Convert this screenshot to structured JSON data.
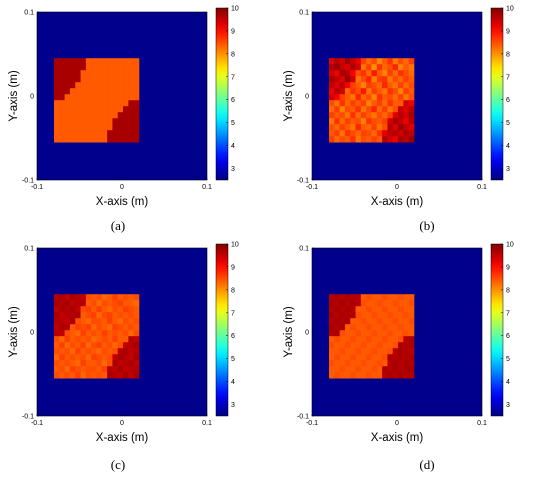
{
  "chart_data": [
    {
      "type": "heatmap",
      "panel_label": "(a)",
      "xlabel": "X-axis (m)",
      "ylabel": "Y-axis (m)",
      "xlim": [
        -0.1,
        0.1
      ],
      "ylim": [
        -0.1,
        0.1
      ],
      "x_ticks": [
        "-0.1",
        "0",
        "0.1"
      ],
      "y_ticks": [
        "0.1",
        "0",
        "-0.1"
      ],
      "colorbar_range": [
        2.5,
        10
      ],
      "colorbar_ticks": [
        "10",
        "9",
        "8",
        "7",
        "6",
        "5",
        "4",
        "3"
      ],
      "background_value": 2.6,
      "grid": [
        [
          9.7,
          9.7,
          9.7,
          9.7,
          9.7,
          9.7,
          8.4,
          8.4,
          8.4,
          8.4,
          8.4,
          8.4,
          8.4,
          8.4,
          8.4,
          8.4
        ],
        [
          9.7,
          9.7,
          9.7,
          9.7,
          9.7,
          9.7,
          8.4,
          8.4,
          8.4,
          8.4,
          8.4,
          8.4,
          8.4,
          8.4,
          8.4,
          8.4
        ],
        [
          9.7,
          9.7,
          9.7,
          9.7,
          9.7,
          8.4,
          8.4,
          8.4,
          8.4,
          8.4,
          8.4,
          8.4,
          8.4,
          8.4,
          8.4,
          8.4
        ],
        [
          9.7,
          9.7,
          9.7,
          9.7,
          9.7,
          8.4,
          8.4,
          8.4,
          8.4,
          8.4,
          8.4,
          8.4,
          8.4,
          8.4,
          8.4,
          8.4
        ],
        [
          9.7,
          9.7,
          9.7,
          9.7,
          8.4,
          8.4,
          8.4,
          8.4,
          8.4,
          8.4,
          8.4,
          8.4,
          8.4,
          8.4,
          8.4,
          8.4
        ],
        [
          9.7,
          9.7,
          9.7,
          8.4,
          8.4,
          8.4,
          8.4,
          8.4,
          8.4,
          8.4,
          8.4,
          8.4,
          8.4,
          8.4,
          8.4,
          8.4
        ],
        [
          9.7,
          9.7,
          8.4,
          8.4,
          8.4,
          8.4,
          8.4,
          8.4,
          8.4,
          8.4,
          8.4,
          8.4,
          8.4,
          8.4,
          8.4,
          8.4
        ],
        [
          8.4,
          8.4,
          8.4,
          8.4,
          8.4,
          8.4,
          8.4,
          8.4,
          8.4,
          8.4,
          8.4,
          8.4,
          8.4,
          8.4,
          9.7,
          9.7
        ],
        [
          8.4,
          8.4,
          8.4,
          8.4,
          8.4,
          8.4,
          8.4,
          8.4,
          8.4,
          8.4,
          8.4,
          8.4,
          8.4,
          9.7,
          9.7,
          9.7
        ],
        [
          8.4,
          8.4,
          8.4,
          8.4,
          8.4,
          8.4,
          8.4,
          8.4,
          8.4,
          8.4,
          8.4,
          8.4,
          9.7,
          9.7,
          9.7,
          9.7
        ],
        [
          8.4,
          8.4,
          8.4,
          8.4,
          8.4,
          8.4,
          8.4,
          8.4,
          8.4,
          8.4,
          8.4,
          9.7,
          9.7,
          9.7,
          9.7,
          9.7
        ],
        [
          8.4,
          8.4,
          8.4,
          8.4,
          8.4,
          8.4,
          8.4,
          8.4,
          8.4,
          8.4,
          8.4,
          9.7,
          9.7,
          9.7,
          9.7,
          9.7
        ],
        [
          8.4,
          8.4,
          8.4,
          8.4,
          8.4,
          8.4,
          8.4,
          8.4,
          8.4,
          8.4,
          9.7,
          9.7,
          9.7,
          9.7,
          9.7,
          9.7
        ],
        [
          8.4,
          8.4,
          8.4,
          8.4,
          8.4,
          8.4,
          8.4,
          8.4,
          8.4,
          8.4,
          9.7,
          9.7,
          9.7,
          9.7,
          9.7,
          9.7
        ]
      ]
    },
    {
      "type": "heatmap",
      "panel_label": "(b)",
      "xlabel": "X-axis (m)",
      "ylabel": "Y-axis (m)",
      "xlim": [
        -0.1,
        0.1
      ],
      "ylim": [
        -0.1,
        0.1
      ],
      "x_ticks": [
        "-0.1",
        "0",
        "0.1"
      ],
      "y_ticks": [
        "0.1",
        "0",
        "-0.1"
      ],
      "colorbar_range": [
        2.5,
        10
      ],
      "colorbar_ticks": [
        "10",
        "9",
        "8",
        "7",
        "6",
        "5",
        "4",
        "3"
      ],
      "background_value": 2.6,
      "grid": [
        [
          9.3,
          9.6,
          9.4,
          9.8,
          9.5,
          9.2,
          8.6,
          8.3,
          8.5,
          8.1,
          8.4,
          8.7,
          8.2,
          8.5,
          8.3,
          8.6
        ],
        [
          9.6,
          9.8,
          9.5,
          9.3,
          9.7,
          9.4,
          8.2,
          8.6,
          8.0,
          8.7,
          8.3,
          8.5,
          8.8,
          8.1,
          8.4,
          8.2
        ],
        [
          9.4,
          9.2,
          9.7,
          9.6,
          9.1,
          8.5,
          8.7,
          8.3,
          8.9,
          8.4,
          8.1,
          8.6,
          8.3,
          8.7,
          8.5,
          8.3
        ],
        [
          9.7,
          9.5,
          9.3,
          9.8,
          9.4,
          8.2,
          8.5,
          8.8,
          8.1,
          8.6,
          8.7,
          8.2,
          8.5,
          8.3,
          8.6,
          8.4
        ],
        [
          9.5,
          9.3,
          9.6,
          9.1,
          8.6,
          8.4,
          8.1,
          8.6,
          8.5,
          8.3,
          8.8,
          8.4,
          8.2,
          8.6,
          8.3,
          8.5
        ],
        [
          9.2,
          9.6,
          9.4,
          8.3,
          8.7,
          8.5,
          8.9,
          8.2,
          8.6,
          8.4,
          8.2,
          8.7,
          8.5,
          8.1,
          8.6,
          8.4
        ],
        [
          9.4,
          9.1,
          8.6,
          8.4,
          8.2,
          8.8,
          8.3,
          8.5,
          8.1,
          8.7,
          8.4,
          8.5,
          8.3,
          8.6,
          8.2,
          8.5
        ],
        [
          8.5,
          8.2,
          8.7,
          8.3,
          8.6,
          8.4,
          8.6,
          8.1,
          8.4,
          8.6,
          8.3,
          8.7,
          8.4,
          8.4,
          9.4,
          9.2
        ],
        [
          8.3,
          8.6,
          8.1,
          8.5,
          8.4,
          8.7,
          8.2,
          8.5,
          8.8,
          8.3,
          8.6,
          8.2,
          8.5,
          9.5,
          9.3,
          9.6
        ],
        [
          8.6,
          8.4,
          8.5,
          8.2,
          8.7,
          8.3,
          8.6,
          8.4,
          8.2,
          8.5,
          8.3,
          8.6,
          9.3,
          9.6,
          9.4,
          9.7
        ],
        [
          8.2,
          8.7,
          8.3,
          8.6,
          8.4,
          8.5,
          8.1,
          8.7,
          8.5,
          8.4,
          8.6,
          9.4,
          9.7,
          9.5,
          9.2,
          9.6
        ],
        [
          8.5,
          8.3,
          8.6,
          8.4,
          8.2,
          8.8,
          8.4,
          8.3,
          8.6,
          8.2,
          8.5,
          9.6,
          9.3,
          9.8,
          9.5,
          9.3
        ],
        [
          8.4,
          8.6,
          8.2,
          8.7,
          8.5,
          8.3,
          8.6,
          8.5,
          8.3,
          8.7,
          9.3,
          9.5,
          9.6,
          9.4,
          9.7,
          9.5
        ],
        [
          8.6,
          8.3,
          8.5,
          8.4,
          8.7,
          8.2,
          8.5,
          8.4,
          8.6,
          8.4,
          9.6,
          9.4,
          9.2,
          9.7,
          9.5,
          9.8
        ]
      ]
    },
    {
      "type": "heatmap",
      "panel_label": "(c)",
      "xlabel": "X-axis (m)",
      "ylabel": "Y-axis (m)",
      "xlim": [
        -0.1,
        0.1
      ],
      "ylim": [
        -0.1,
        0.1
      ],
      "x_ticks": [
        "-0.1",
        "0",
        "0.1"
      ],
      "y_ticks": [
        "0.1",
        "0",
        "-0.1"
      ],
      "colorbar_range": [
        2.5,
        10
      ],
      "colorbar_ticks": [
        "10",
        "9",
        "8",
        "7",
        "6",
        "5",
        "4",
        "3"
      ],
      "background_value": 2.6,
      "grid": [
        [
          9.6,
          9.7,
          9.5,
          9.7,
          9.6,
          9.5,
          8.5,
          8.4,
          8.5,
          8.3,
          8.4,
          8.6,
          8.4,
          8.5,
          8.4,
          8.5
        ],
        [
          9.7,
          9.6,
          9.7,
          9.5,
          9.6,
          9.6,
          8.4,
          8.5,
          8.3,
          8.5,
          8.4,
          8.5,
          8.6,
          8.4,
          8.4,
          8.3
        ],
        [
          9.5,
          9.7,
          9.6,
          9.7,
          9.5,
          8.5,
          8.6,
          8.4,
          8.6,
          8.4,
          8.3,
          8.5,
          8.4,
          8.6,
          8.5,
          8.4
        ],
        [
          9.7,
          9.5,
          9.6,
          9.6,
          9.7,
          8.4,
          8.5,
          8.6,
          8.3,
          8.5,
          8.6,
          8.4,
          8.5,
          8.4,
          8.5,
          8.4
        ],
        [
          9.6,
          9.6,
          9.5,
          9.7,
          8.5,
          8.4,
          8.3,
          8.5,
          8.5,
          8.4,
          8.6,
          8.4,
          8.3,
          8.5,
          8.4,
          8.5
        ],
        [
          9.5,
          9.7,
          9.6,
          8.4,
          8.6,
          8.5,
          8.6,
          8.3,
          8.5,
          8.4,
          8.3,
          8.6,
          8.5,
          8.4,
          8.5,
          8.4
        ],
        [
          9.6,
          9.5,
          8.5,
          8.4,
          8.3,
          8.6,
          8.4,
          8.5,
          8.4,
          8.6,
          8.4,
          8.5,
          8.4,
          8.5,
          8.3,
          8.5
        ],
        [
          8.5,
          8.3,
          8.6,
          8.4,
          8.5,
          8.4,
          8.5,
          8.3,
          8.4,
          8.5,
          8.4,
          8.6,
          8.4,
          8.4,
          9.6,
          9.5
        ],
        [
          8.4,
          8.6,
          8.3,
          8.5,
          8.4,
          8.6,
          8.3,
          8.5,
          8.6,
          8.4,
          8.5,
          8.3,
          8.5,
          9.5,
          9.6,
          9.7
        ],
        [
          8.5,
          8.4,
          8.5,
          8.3,
          8.6,
          8.4,
          8.5,
          8.4,
          8.3,
          8.5,
          8.4,
          8.5,
          9.6,
          9.7,
          9.5,
          9.6
        ],
        [
          8.3,
          8.6,
          8.4,
          8.5,
          8.4,
          8.5,
          8.3,
          8.6,
          8.5,
          8.4,
          8.5,
          9.5,
          9.7,
          9.6,
          9.5,
          9.7
        ],
        [
          8.5,
          8.4,
          8.5,
          8.4,
          8.3,
          8.6,
          8.4,
          8.4,
          8.5,
          8.3,
          8.5,
          9.7,
          9.5,
          9.6,
          9.7,
          9.5
        ],
        [
          8.4,
          8.5,
          8.3,
          8.6,
          8.5,
          8.4,
          8.5,
          8.5,
          8.4,
          8.6,
          9.6,
          9.5,
          9.7,
          9.5,
          9.6,
          9.6
        ],
        [
          8.5,
          8.4,
          8.5,
          8.4,
          8.6,
          8.3,
          8.5,
          8.4,
          8.5,
          8.4,
          9.7,
          9.6,
          9.5,
          9.7,
          9.5,
          9.7
        ]
      ]
    },
    {
      "type": "heatmap",
      "panel_label": "(d)",
      "xlabel": "X-axis (m)",
      "ylabel": "Y-axis (m)",
      "xlim": [
        -0.1,
        0.1
      ],
      "ylim": [
        -0.1,
        0.1
      ],
      "x_ticks": [
        "-0.1",
        "0",
        "0.1"
      ],
      "y_ticks": [
        "0.1",
        "0",
        "-0.1"
      ],
      "colorbar_range": [
        2.5,
        10
      ],
      "colorbar_ticks": [
        "10",
        "9",
        "8",
        "7",
        "6",
        "5",
        "4",
        "3"
      ],
      "background_value": 2.6,
      "grid": [
        [
          9.6,
          9.7,
          9.6,
          9.7,
          9.6,
          9.6,
          8.4,
          8.5,
          8.4,
          8.4,
          8.5,
          8.4,
          8.4,
          8.5,
          8.4,
          8.4
        ],
        [
          9.7,
          9.6,
          9.7,
          9.6,
          9.7,
          9.6,
          8.5,
          8.4,
          8.4,
          8.5,
          8.4,
          8.4,
          8.5,
          8.4,
          8.4,
          8.5
        ],
        [
          9.6,
          9.7,
          9.6,
          9.7,
          9.6,
          8.4,
          8.4,
          8.5,
          8.4,
          8.4,
          8.5,
          8.4,
          8.4,
          8.5,
          8.4,
          8.4
        ],
        [
          9.7,
          9.6,
          9.7,
          9.6,
          9.7,
          8.5,
          8.4,
          8.4,
          8.5,
          8.4,
          8.4,
          8.5,
          8.4,
          8.4,
          8.5,
          8.4
        ],
        [
          9.6,
          9.7,
          9.6,
          9.7,
          8.4,
          8.4,
          8.5,
          8.4,
          8.4,
          8.5,
          8.4,
          8.4,
          8.5,
          8.4,
          8.4,
          8.5
        ],
        [
          9.7,
          9.6,
          9.7,
          8.4,
          8.5,
          8.4,
          8.4,
          8.5,
          8.4,
          8.4,
          8.5,
          8.4,
          8.4,
          8.5,
          8.4,
          8.4
        ],
        [
          9.6,
          9.7,
          8.5,
          8.4,
          8.4,
          8.5,
          8.4,
          8.4,
          8.5,
          8.4,
          8.4,
          8.5,
          8.4,
          8.4,
          8.5,
          8.4
        ],
        [
          8.4,
          8.5,
          8.4,
          8.4,
          8.5,
          8.4,
          8.4,
          8.5,
          8.4,
          8.4,
          8.5,
          8.4,
          8.4,
          8.5,
          9.6,
          9.7
        ],
        [
          8.5,
          8.4,
          8.4,
          8.5,
          8.4,
          8.4,
          8.5,
          8.4,
          8.4,
          8.5,
          8.4,
          8.4,
          8.5,
          9.7,
          9.6,
          9.7
        ],
        [
          8.4,
          8.4,
          8.5,
          8.4,
          8.4,
          8.5,
          8.4,
          8.4,
          8.5,
          8.4,
          8.4,
          8.5,
          9.6,
          9.7,
          9.6,
          9.6
        ],
        [
          8.4,
          8.5,
          8.4,
          8.4,
          8.5,
          8.4,
          8.4,
          8.5,
          8.4,
          8.4,
          8.5,
          9.7,
          9.6,
          9.7,
          9.6,
          9.7
        ],
        [
          8.5,
          8.4,
          8.4,
          8.5,
          8.4,
          8.4,
          8.5,
          8.4,
          8.4,
          8.5,
          8.4,
          9.6,
          9.7,
          9.6,
          9.7,
          9.6
        ],
        [
          8.4,
          8.4,
          8.5,
          8.4,
          8.4,
          8.5,
          8.4,
          8.4,
          8.5,
          8.4,
          9.7,
          9.6,
          9.7,
          9.6,
          9.7,
          9.7
        ],
        [
          8.4,
          8.5,
          8.4,
          8.4,
          8.5,
          8.4,
          8.4,
          8.5,
          8.4,
          8.4,
          9.6,
          9.7,
          9.6,
          9.7,
          9.6,
          9.6
        ]
      ]
    }
  ]
}
